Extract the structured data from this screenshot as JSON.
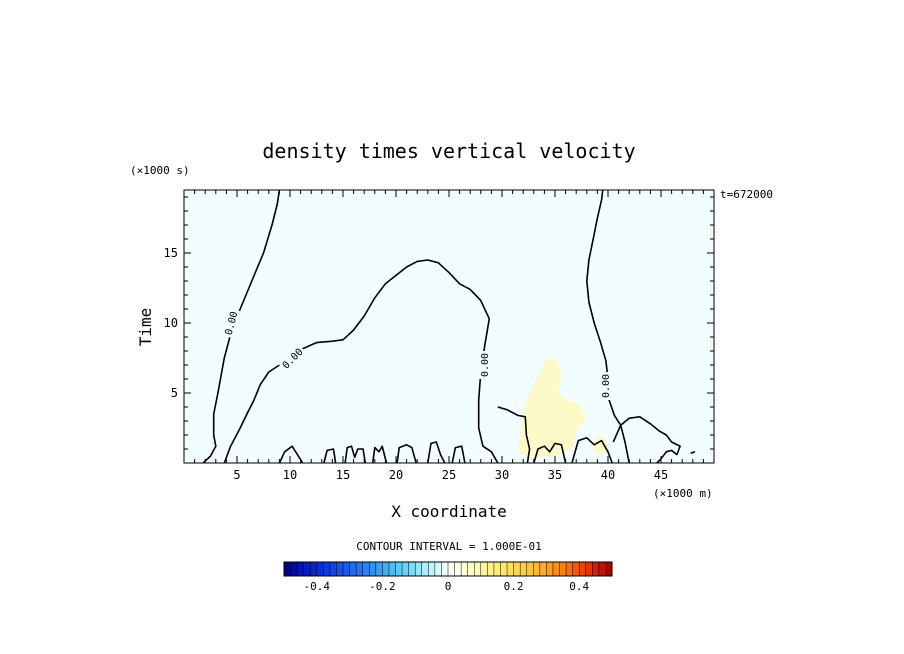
{
  "chart_data": {
    "type": "contour",
    "title": "density times vertical velocity",
    "xlabel": "X coordinate",
    "ylabel": "Time",
    "x_unit": "(×1000 m)",
    "y_unit": "(×1000 s)",
    "time_stamp": "t=672000",
    "xlim": [
      0,
      50
    ],
    "ylim": [
      0,
      19.5
    ],
    "x_ticks": [
      5,
      10,
      15,
      20,
      25,
      30,
      35,
      40,
      45
    ],
    "y_ticks": [
      5,
      10,
      15
    ],
    "contour_interval_text": "CONTOUR INTERVAL = 1.000E-01",
    "contour_label": "0.00",
    "colorbar": {
      "min": -0.5,
      "max": 0.5,
      "tick_values": [
        -0.4,
        -0.2,
        0,
        0.2,
        0.4
      ],
      "tick_labels": [
        "-0.4",
        "-0.2",
        "0",
        "0.2",
        "0.4"
      ]
    },
    "background_fill_color": "#f2fdff",
    "positive_patch_color": "#fdf9c8",
    "zero_contours": [
      [
        [
          1.8,
          0
        ],
        [
          2.5,
          0.5
        ],
        [
          3,
          1.2
        ],
        [
          2.8,
          2
        ],
        [
          2.8,
          3.5
        ],
        [
          3.2,
          5
        ],
        [
          3.8,
          7.5
        ],
        [
          4.5,
          9.5
        ],
        [
          5.3,
          11
        ],
        [
          6.4,
          13
        ],
        [
          7.5,
          15
        ],
        [
          8.3,
          17
        ],
        [
          8.8,
          18.5
        ],
        [
          9,
          19.5
        ]
      ],
      [
        [
          3.8,
          0
        ],
        [
          4.4,
          1.2
        ],
        [
          5.3,
          2.5
        ],
        [
          6,
          3.6
        ],
        [
          6.6,
          4.5
        ],
        [
          7.2,
          5.6
        ],
        [
          8,
          6.5
        ],
        [
          9,
          7
        ],
        [
          10,
          7.6
        ],
        [
          11,
          8.1
        ],
        [
          12.5,
          8.6
        ],
        [
          14,
          8.7
        ],
        [
          15,
          8.8
        ],
        [
          16,
          9.5
        ],
        [
          17,
          10.5
        ],
        [
          18,
          11.8
        ],
        [
          19,
          12.8
        ],
        [
          20,
          13.4
        ],
        [
          21,
          14
        ],
        [
          22,
          14.4
        ],
        [
          23,
          14.5
        ],
        [
          24,
          14.3
        ],
        [
          25,
          13.6
        ],
        [
          26,
          12.8
        ],
        [
          27,
          12.4
        ],
        [
          28,
          11.6
        ],
        [
          28.8,
          10.3
        ],
        [
          28.4,
          8.5
        ],
        [
          28,
          6.5
        ],
        [
          27.8,
          4.5
        ],
        [
          27.8,
          2.5
        ],
        [
          28.2,
          1.2
        ],
        [
          29,
          0.8
        ],
        [
          29.6,
          0
        ]
      ],
      [
        [
          29.6,
          4
        ],
        [
          30.5,
          3.8
        ],
        [
          31.5,
          3.4
        ],
        [
          32.2,
          3.3
        ],
        [
          32.3,
          2
        ],
        [
          32.6,
          1
        ],
        [
          32.4,
          0
        ]
      ],
      [
        [
          39.5,
          19.5
        ],
        [
          39.4,
          18.8
        ],
        [
          39,
          17.5
        ],
        [
          38.6,
          16
        ],
        [
          38.2,
          14.5
        ],
        [
          38,
          13
        ],
        [
          38.2,
          11.5
        ],
        [
          38.7,
          10
        ],
        [
          39.3,
          8.6
        ],
        [
          39.8,
          7.3
        ],
        [
          40,
          6
        ],
        [
          40.1,
          4.5
        ],
        [
          40.6,
          3.4
        ],
        [
          41.2,
          2.7
        ],
        [
          41.6,
          1.5
        ],
        [
          42,
          0
        ]
      ],
      [
        [
          40.5,
          1.5
        ],
        [
          41.2,
          2.7
        ],
        [
          42,
          3.2
        ],
        [
          43,
          3.3
        ],
        [
          44,
          2.8
        ],
        [
          44.8,
          2.3
        ],
        [
          45.5,
          2
        ],
        [
          46,
          1.5
        ],
        [
          46.8,
          1.2
        ],
        [
          46.5,
          0.6
        ],
        [
          46,
          0.9
        ],
        [
          45.5,
          0.8
        ],
        [
          45,
          0.3
        ],
        [
          44.6,
          0
        ]
      ],
      [
        [
          9,
          0
        ],
        [
          9.5,
          0.8
        ],
        [
          10.2,
          1.2
        ],
        [
          10.7,
          0.6
        ],
        [
          11.2,
          0
        ]
      ],
      [
        [
          13.2,
          0
        ],
        [
          13.5,
          0.9
        ],
        [
          14.1,
          1
        ],
        [
          14.3,
          0
        ]
      ],
      [
        [
          15.2,
          0
        ],
        [
          15.4,
          1.1
        ],
        [
          15.8,
          1.2
        ],
        [
          16.1,
          0.4
        ],
        [
          16.4,
          1
        ],
        [
          16.9,
          1
        ],
        [
          17.1,
          0
        ]
      ],
      [
        [
          17.8,
          0
        ],
        [
          18,
          1.1
        ],
        [
          18.4,
          0.8
        ],
        [
          18.7,
          1.2
        ],
        [
          19.1,
          0
        ]
      ],
      [
        [
          20.1,
          0
        ],
        [
          20.3,
          1.1
        ],
        [
          21,
          1.3
        ],
        [
          21.5,
          1.1
        ],
        [
          21.9,
          0
        ]
      ],
      [
        [
          23,
          0
        ],
        [
          23.3,
          1.4
        ],
        [
          23.8,
          1.5
        ],
        [
          24.2,
          0.6
        ],
        [
          24.6,
          0
        ]
      ],
      [
        [
          25.3,
          0
        ],
        [
          25.6,
          1.1
        ],
        [
          26.2,
          1.2
        ],
        [
          26.5,
          0
        ]
      ],
      [
        [
          33,
          0
        ],
        [
          33.4,
          1
        ],
        [
          34,
          1.2
        ],
        [
          34.5,
          0.8
        ],
        [
          35,
          1.4
        ],
        [
          35.6,
          1.3
        ],
        [
          36,
          0
        ]
      ],
      [
        [
          36.6,
          0
        ],
        [
          37.2,
          1.6
        ],
        [
          38,
          1.8
        ],
        [
          38.7,
          1.3
        ],
        [
          39.4,
          1.6
        ],
        [
          40,
          0.8
        ],
        [
          40.4,
          0
        ]
      ],
      [
        [
          47.8,
          0.7
        ],
        [
          48.2,
          0.8
        ]
      ]
    ]
  }
}
